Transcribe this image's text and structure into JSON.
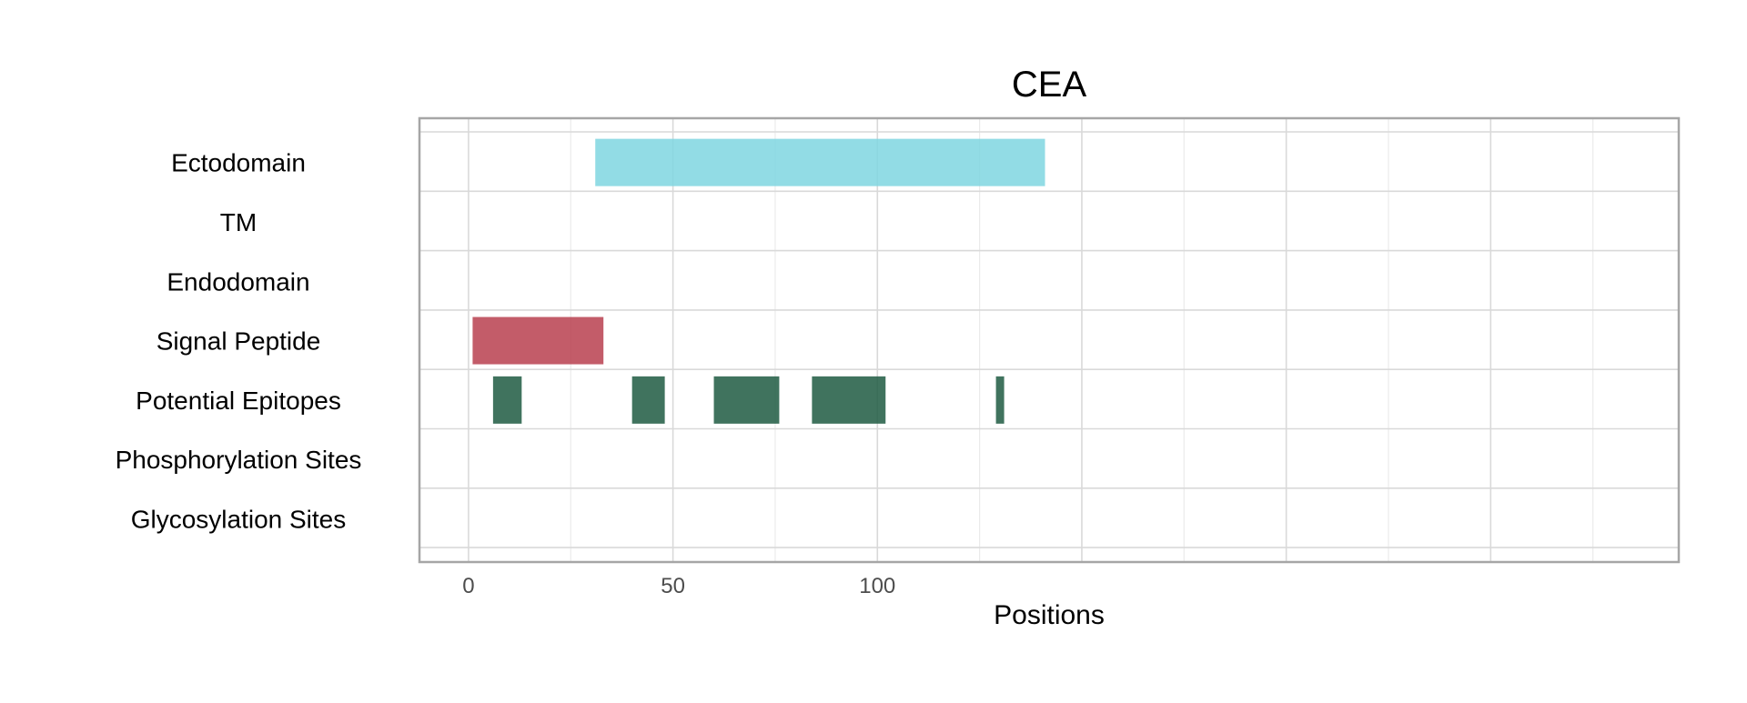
{
  "chart_data": {
    "type": "bar",
    "orientation": "horizontal-ranges",
    "title": "CEA",
    "xlabel": "Positions",
    "ylabel": "",
    "xlim": [
      -12,
      296
    ],
    "x_ticks": [
      0,
      50,
      100
    ],
    "x_tick_labels": [
      "0",
      "50",
      "100"
    ],
    "grid": true,
    "legend": "none",
    "categories": [
      "Ectodomain",
      "TM",
      "Endodomain",
      "Signal Peptide",
      "Potential Epitopes",
      "Phosphorylation Sites",
      "Glycosylation Sites"
    ],
    "series": [
      {
        "category": "Ectodomain",
        "color": "#7fd6e0",
        "ranges": [
          [
            31,
            141
          ]
        ]
      },
      {
        "category": "Signal Peptide",
        "color": "#b8404f",
        "ranges": [
          [
            1,
            33
          ]
        ]
      },
      {
        "category": "Potential Epitopes",
        "color": "#1f5a42",
        "ranges": [
          [
            6,
            13
          ],
          [
            40,
            48
          ],
          [
            60,
            76
          ],
          [
            84,
            102
          ],
          [
            129,
            131
          ]
        ]
      }
    ]
  }
}
